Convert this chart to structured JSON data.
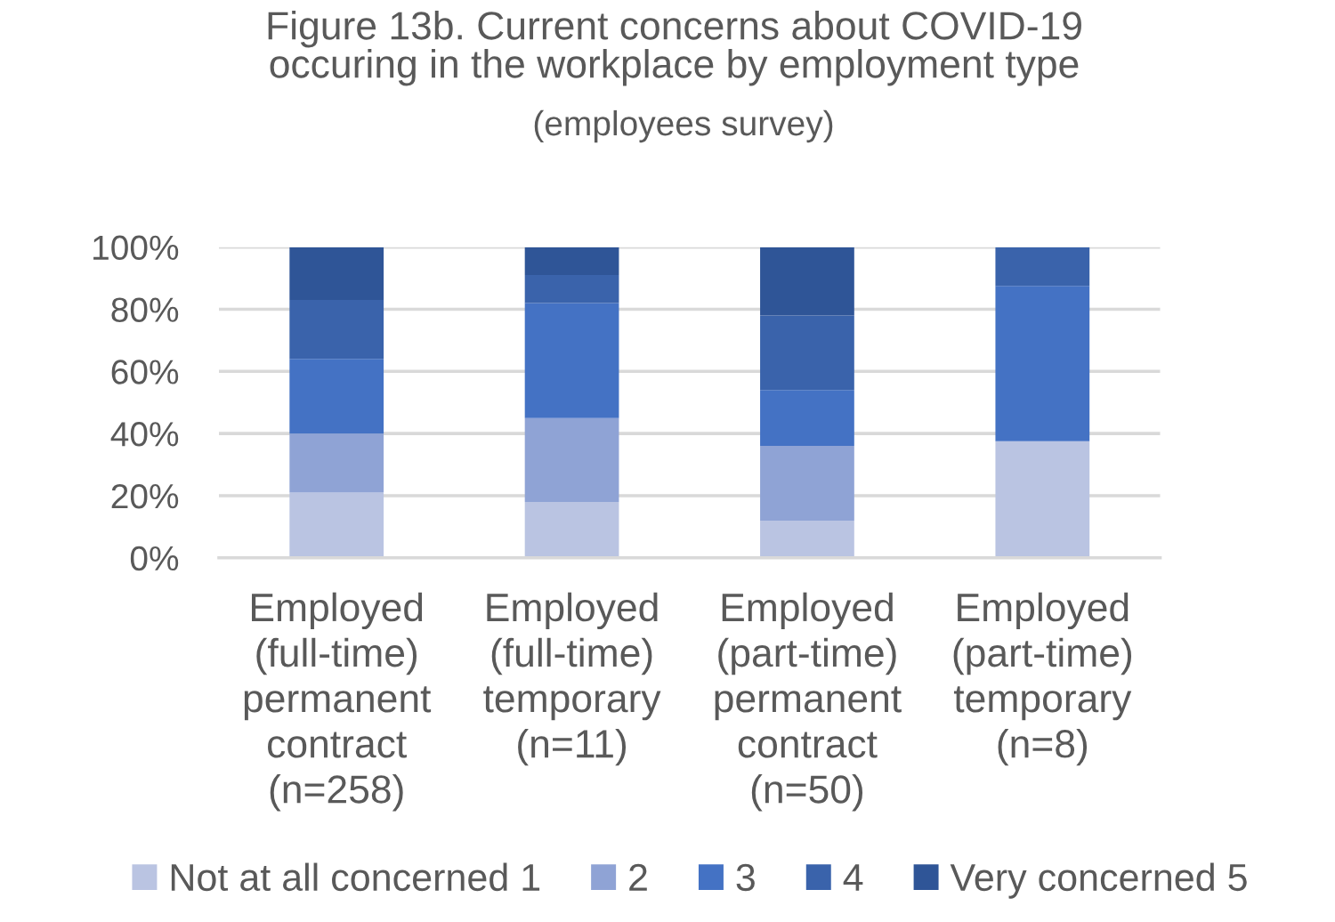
{
  "chart_data": {
    "type": "bar",
    "title": "Figure 13b. Current concerns about COVID-19\noccuring in the workplace by employment type",
    "subtitle": "(employees survey)",
    "categories": [
      "Employed (full-time) permanent contract (n=258)",
      "Employed (full-time) temporary (n=11)",
      "Employed (part-time) permanent contract (n=50)",
      "Employed (part-time) temporary (n=8)"
    ],
    "stacked": true,
    "series": [
      {
        "name": "Not at all concerned 1",
        "color": "#bac4e2",
        "values": [
          21,
          18,
          12,
          37.5
        ]
      },
      {
        "name": "2",
        "color": "#8fa3d5",
        "values": [
          19,
          27,
          24,
          0
        ]
      },
      {
        "name": "3",
        "color": "#4472c4",
        "values": [
          24,
          37,
          18,
          50
        ]
      },
      {
        "name": "4",
        "color": "#3a63ab",
        "values": [
          19,
          9,
          24,
          12.5
        ]
      },
      {
        "name": "Very concerned 5",
        "color": "#2f5597",
        "values": [
          17,
          9,
          22,
          0
        ]
      }
    ],
    "ylim": [
      0,
      100
    ],
    "yticks": [
      {
        "value": 0,
        "label": "0%"
      },
      {
        "value": 20,
        "label": "20%"
      },
      {
        "value": 40,
        "label": "40%"
      },
      {
        "value": 60,
        "label": "60%"
      },
      {
        "value": 80,
        "label": "80%"
      },
      {
        "value": 100,
        "label": "100%"
      }
    ],
    "grid": "y",
    "legend": "bottom"
  }
}
